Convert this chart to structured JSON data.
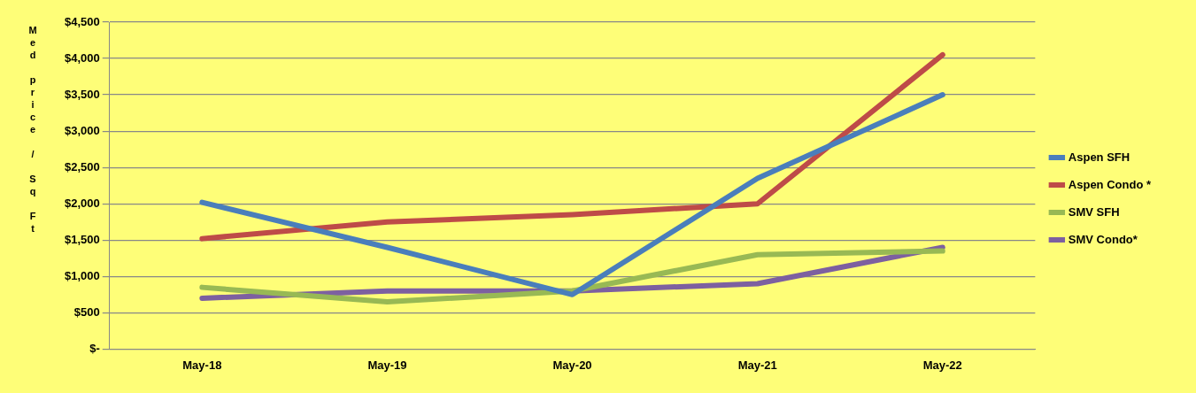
{
  "chart_data": {
    "type": "line",
    "ylabel": "Med price / Sq Ft",
    "categories": [
      "May-18",
      "May-19",
      "May-20",
      "May-21",
      "May-22"
    ],
    "series": [
      {
        "name": "Aspen SFH",
        "color": "#4a7ebb",
        "values": [
          2020,
          1400,
          750,
          2350,
          3500
        ]
      },
      {
        "name": "Aspen Condo *",
        "color": "#be4b48",
        "values": [
          1520,
          1750,
          1850,
          2000,
          4050
        ]
      },
      {
        "name": "SMV SFH",
        "color": "#98b954",
        "values": [
          850,
          650,
          800,
          1300,
          1350
        ]
      },
      {
        "name": "SMV Condo*",
        "color": "#7d60a0",
        "values": [
          700,
          800,
          800,
          900,
          1400
        ]
      }
    ],
    "ylim": [
      0,
      4500
    ],
    "yticks": [
      {
        "value": 0,
        "label": "$-"
      },
      {
        "value": 500,
        "label": "$500"
      },
      {
        "value": 1000,
        "label": "$1,000"
      },
      {
        "value": 1500,
        "label": "$1,500"
      },
      {
        "value": 2000,
        "label": "$2,000"
      },
      {
        "value": 2500,
        "label": "$2,500"
      },
      {
        "value": 3000,
        "label": "$3,000"
      },
      {
        "value": 3500,
        "label": "$3,500"
      },
      {
        "value": 4000,
        "label": "$4,000"
      },
      {
        "value": 4500,
        "label": "$4,500"
      }
    ],
    "grid": "y",
    "legend": "right",
    "marker": "none",
    "line_style": "solid"
  }
}
